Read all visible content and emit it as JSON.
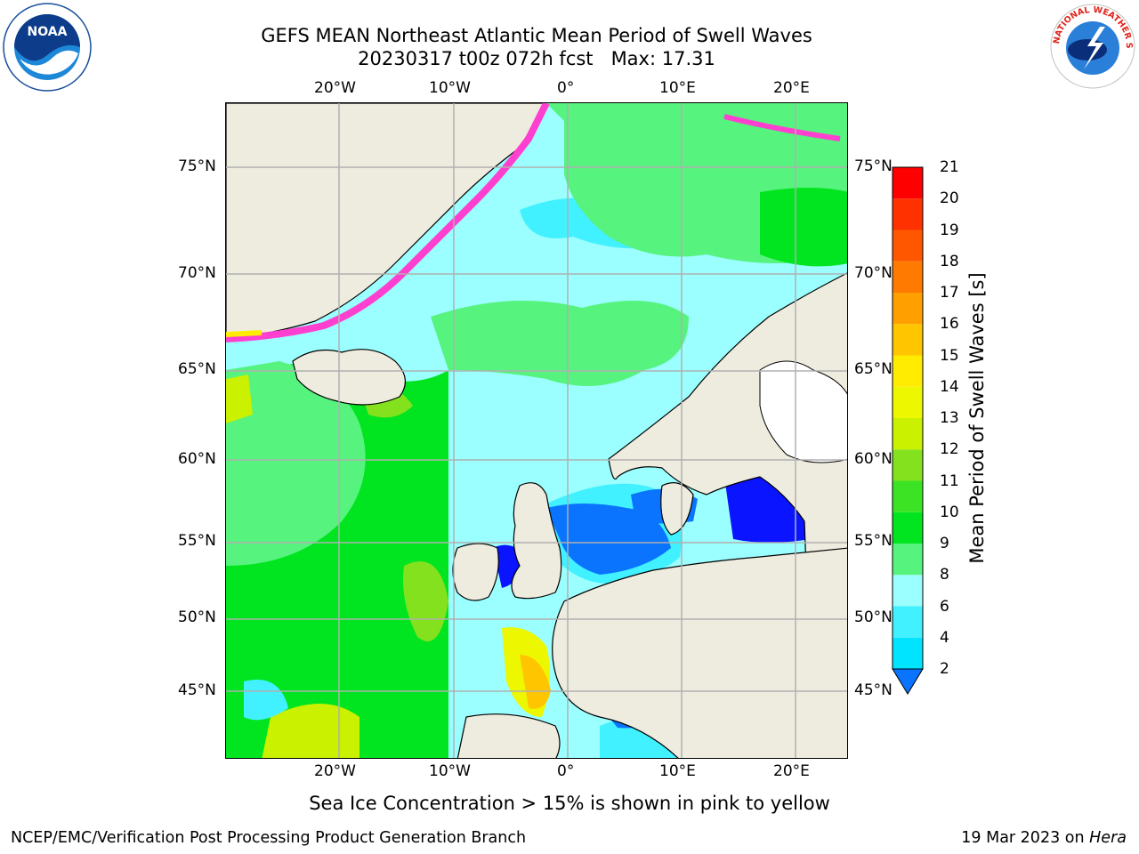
{
  "header": {
    "title_line1": "GEFS MEAN Northeast Atlantic Mean Period of Swell Waves",
    "title_line2": "20230317 t00z 072h fcst   Max: 17.31"
  },
  "map": {
    "lon_ticks": [
      "20°W",
      "10°W",
      "0°",
      "10°E",
      "20°E"
    ],
    "lat_ticks": [
      "75°N",
      "70°N",
      "65°N",
      "60°N",
      "55°N",
      "50°N",
      "45°N"
    ],
    "land_color": "#eeecdf",
    "grid_color": "#b0b0b0",
    "coast_color": "#000000"
  },
  "colorbar": {
    "label": "Mean Period of Swell Waves [s]",
    "ticks": [
      "2",
      "4",
      "6",
      "8",
      "9",
      "10",
      "11",
      "12",
      "13",
      "14",
      "15",
      "16",
      "17",
      "18",
      "19",
      "20",
      "21"
    ],
    "colors": [
      "#0a74ff",
      "#00e4ff",
      "#41f1ff",
      "#9bffff",
      "#56f37e",
      "#00e51f",
      "#3ce324",
      "#84e11d",
      "#c9f100",
      "#ecf700",
      "#ffec00",
      "#ffc600",
      "#ffa000",
      "#ff7a00",
      "#ff5600",
      "#ff3100",
      "#ff0000"
    ],
    "under_color": "#0a14ff"
  },
  "notes": {
    "sea_ice": "Sea Ice Concentration > 15% is shown in pink to yellow"
  },
  "footer": {
    "left": "NCEP/EMC/Verification Post Processing Product Generation Branch",
    "right_date": "19 Mar 2023 on ",
    "right_host": "Hera"
  },
  "logos": {
    "noaa_text": "NOAA",
    "nws_text": "NATIONAL WEATHER SERVICE"
  }
}
